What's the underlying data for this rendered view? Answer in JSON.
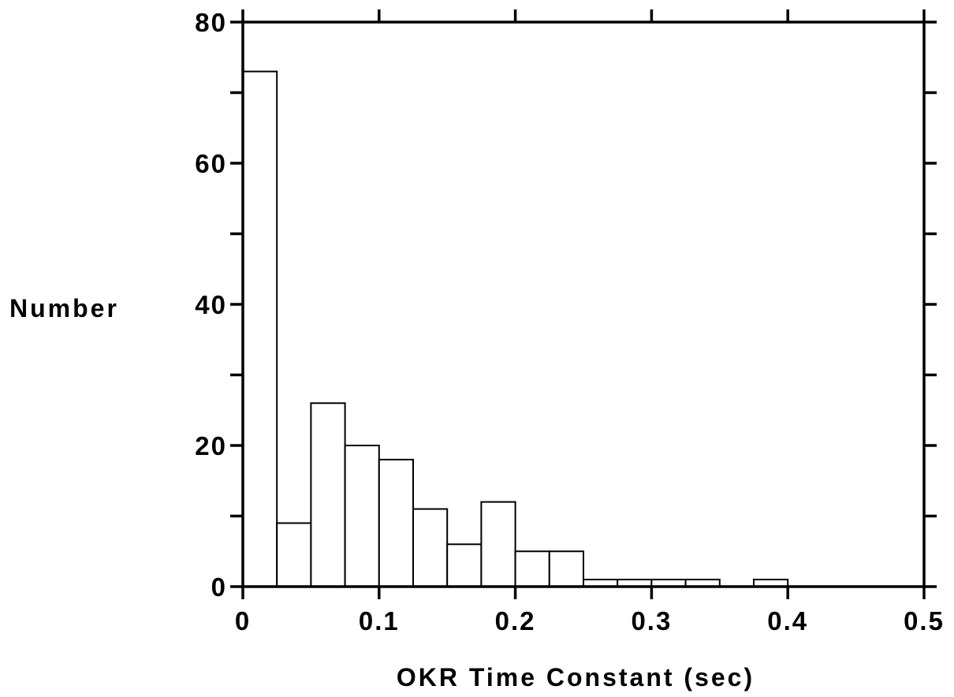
{
  "chart_data": {
    "type": "bar",
    "subtype": "histogram",
    "bin_width": 0.025,
    "bins": [
      {
        "x0": 0.0,
        "x1": 0.025,
        "count": 73
      },
      {
        "x0": 0.025,
        "x1": 0.05,
        "count": 9
      },
      {
        "x0": 0.05,
        "x1": 0.075,
        "count": 26
      },
      {
        "x0": 0.075,
        "x1": 0.1,
        "count": 20
      },
      {
        "x0": 0.1,
        "x1": 0.125,
        "count": 18
      },
      {
        "x0": 0.125,
        "x1": 0.15,
        "count": 11
      },
      {
        "x0": 0.15,
        "x1": 0.175,
        "count": 6
      },
      {
        "x0": 0.175,
        "x1": 0.2,
        "count": 12
      },
      {
        "x0": 0.2,
        "x1": 0.225,
        "count": 5
      },
      {
        "x0": 0.225,
        "x1": 0.25,
        "count": 5
      },
      {
        "x0": 0.25,
        "x1": 0.275,
        "count": 1
      },
      {
        "x0": 0.275,
        "x1": 0.3,
        "count": 1
      },
      {
        "x0": 0.3,
        "x1": 0.325,
        "count": 1
      },
      {
        "x0": 0.325,
        "x1": 0.35,
        "count": 1
      },
      {
        "x0": 0.35,
        "x1": 0.375,
        "count": 0
      },
      {
        "x0": 0.375,
        "x1": 0.4,
        "count": 1
      },
      {
        "x0": 0.4,
        "x1": 0.425,
        "count": 0
      },
      {
        "x0": 0.425,
        "x1": 0.45,
        "count": 0
      },
      {
        "x0": 0.45,
        "x1": 0.475,
        "count": 0
      },
      {
        "x0": 0.475,
        "x1": 0.5,
        "count": 0
      }
    ],
    "xlabel": "OKR Time Constant (sec)",
    "ylabel": "Number",
    "xlim": [
      0,
      0.5
    ],
    "ylim": [
      0,
      80
    ],
    "x_ticks": [
      0,
      0.1,
      0.2,
      0.3,
      0.4,
      0.5
    ],
    "x_tick_labels": [
      "0",
      "0.1",
      "0.2",
      "0.3",
      "0.4",
      "0.5"
    ],
    "y_ticks": [
      0,
      20,
      40,
      60,
      80
    ],
    "y_tick_labels": [
      "0",
      "20",
      "40",
      "60",
      "80"
    ],
    "y_minor_ticks": [
      10,
      30,
      50,
      70
    ],
    "grid": false,
    "colors": {
      "bar_fill": "#ffffff",
      "bar_stroke": "#000000",
      "axes": "#000000"
    }
  }
}
